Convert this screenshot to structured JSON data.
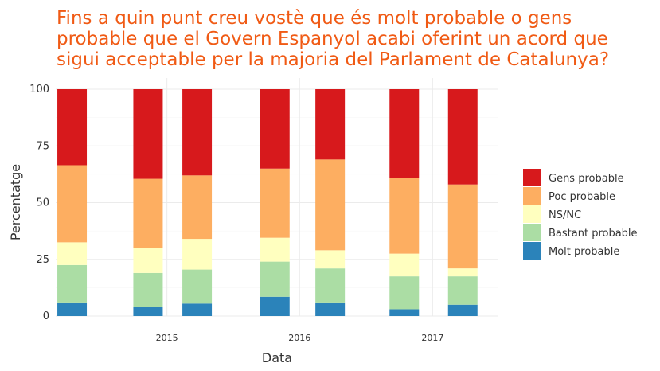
{
  "chart_data": {
    "type": "bar",
    "stacked": true,
    "title_lines": [
      "Fins a quin punt creu vostè que és molt probable o gens",
      "probable que el Govern Espanyol acabi oferint un acord que",
      "sigui acceptable per la majoria del Parlament de Catalunya?"
    ],
    "xlabel": "Data",
    "ylabel": "Percentatge",
    "ylim": [
      0,
      100
    ],
    "yticks": [
      "0",
      "25",
      "50",
      "75",
      "100"
    ],
    "xlim": [
      "2014-03-01",
      "2017-07-01"
    ],
    "xticks": [
      {
        "label": "2015",
        "date": "2015-01-01"
      },
      {
        "label": "2016",
        "date": "2016-01-01"
      },
      {
        "label": "2017",
        "date": "2017-01-01"
      }
    ],
    "grid": true,
    "legend_position": "right",
    "bars": [
      {
        "date": "2014-04-15",
        "values": [
          6,
          16.5,
          10,
          34,
          33.5
        ]
      },
      {
        "date": "2014-11-10",
        "values": [
          4,
          15,
          11,
          30.5,
          39.5
        ]
      },
      {
        "date": "2015-03-25",
        "values": [
          5.5,
          15,
          13.5,
          28,
          38
        ]
      },
      {
        "date": "2015-10-25",
        "values": [
          8.5,
          15.5,
          10.5,
          30.5,
          35
        ]
      },
      {
        "date": "2016-03-25",
        "values": [
          6,
          15,
          8,
          40,
          31
        ]
      },
      {
        "date": "2016-10-15",
        "values": [
          3,
          14.5,
          10,
          33.5,
          39
        ]
      },
      {
        "date": "2017-03-25",
        "values": [
          5,
          12.5,
          3.5,
          37,
          42
        ]
      }
    ],
    "series": [
      {
        "name": "Molt probable",
        "color": "#2b83ba"
      },
      {
        "name": "Bastant probable",
        "color": "#abdda4"
      },
      {
        "name": "NS/NC",
        "color": "#ffffbf"
      },
      {
        "name": "Poc probable",
        "color": "#fdae61"
      },
      {
        "name": "Gens probable",
        "color": "#d7191c"
      }
    ],
    "legend_order": [
      "Gens probable",
      "Poc probable",
      "NS/NC",
      "Bastant probable",
      "Molt probable"
    ]
  }
}
